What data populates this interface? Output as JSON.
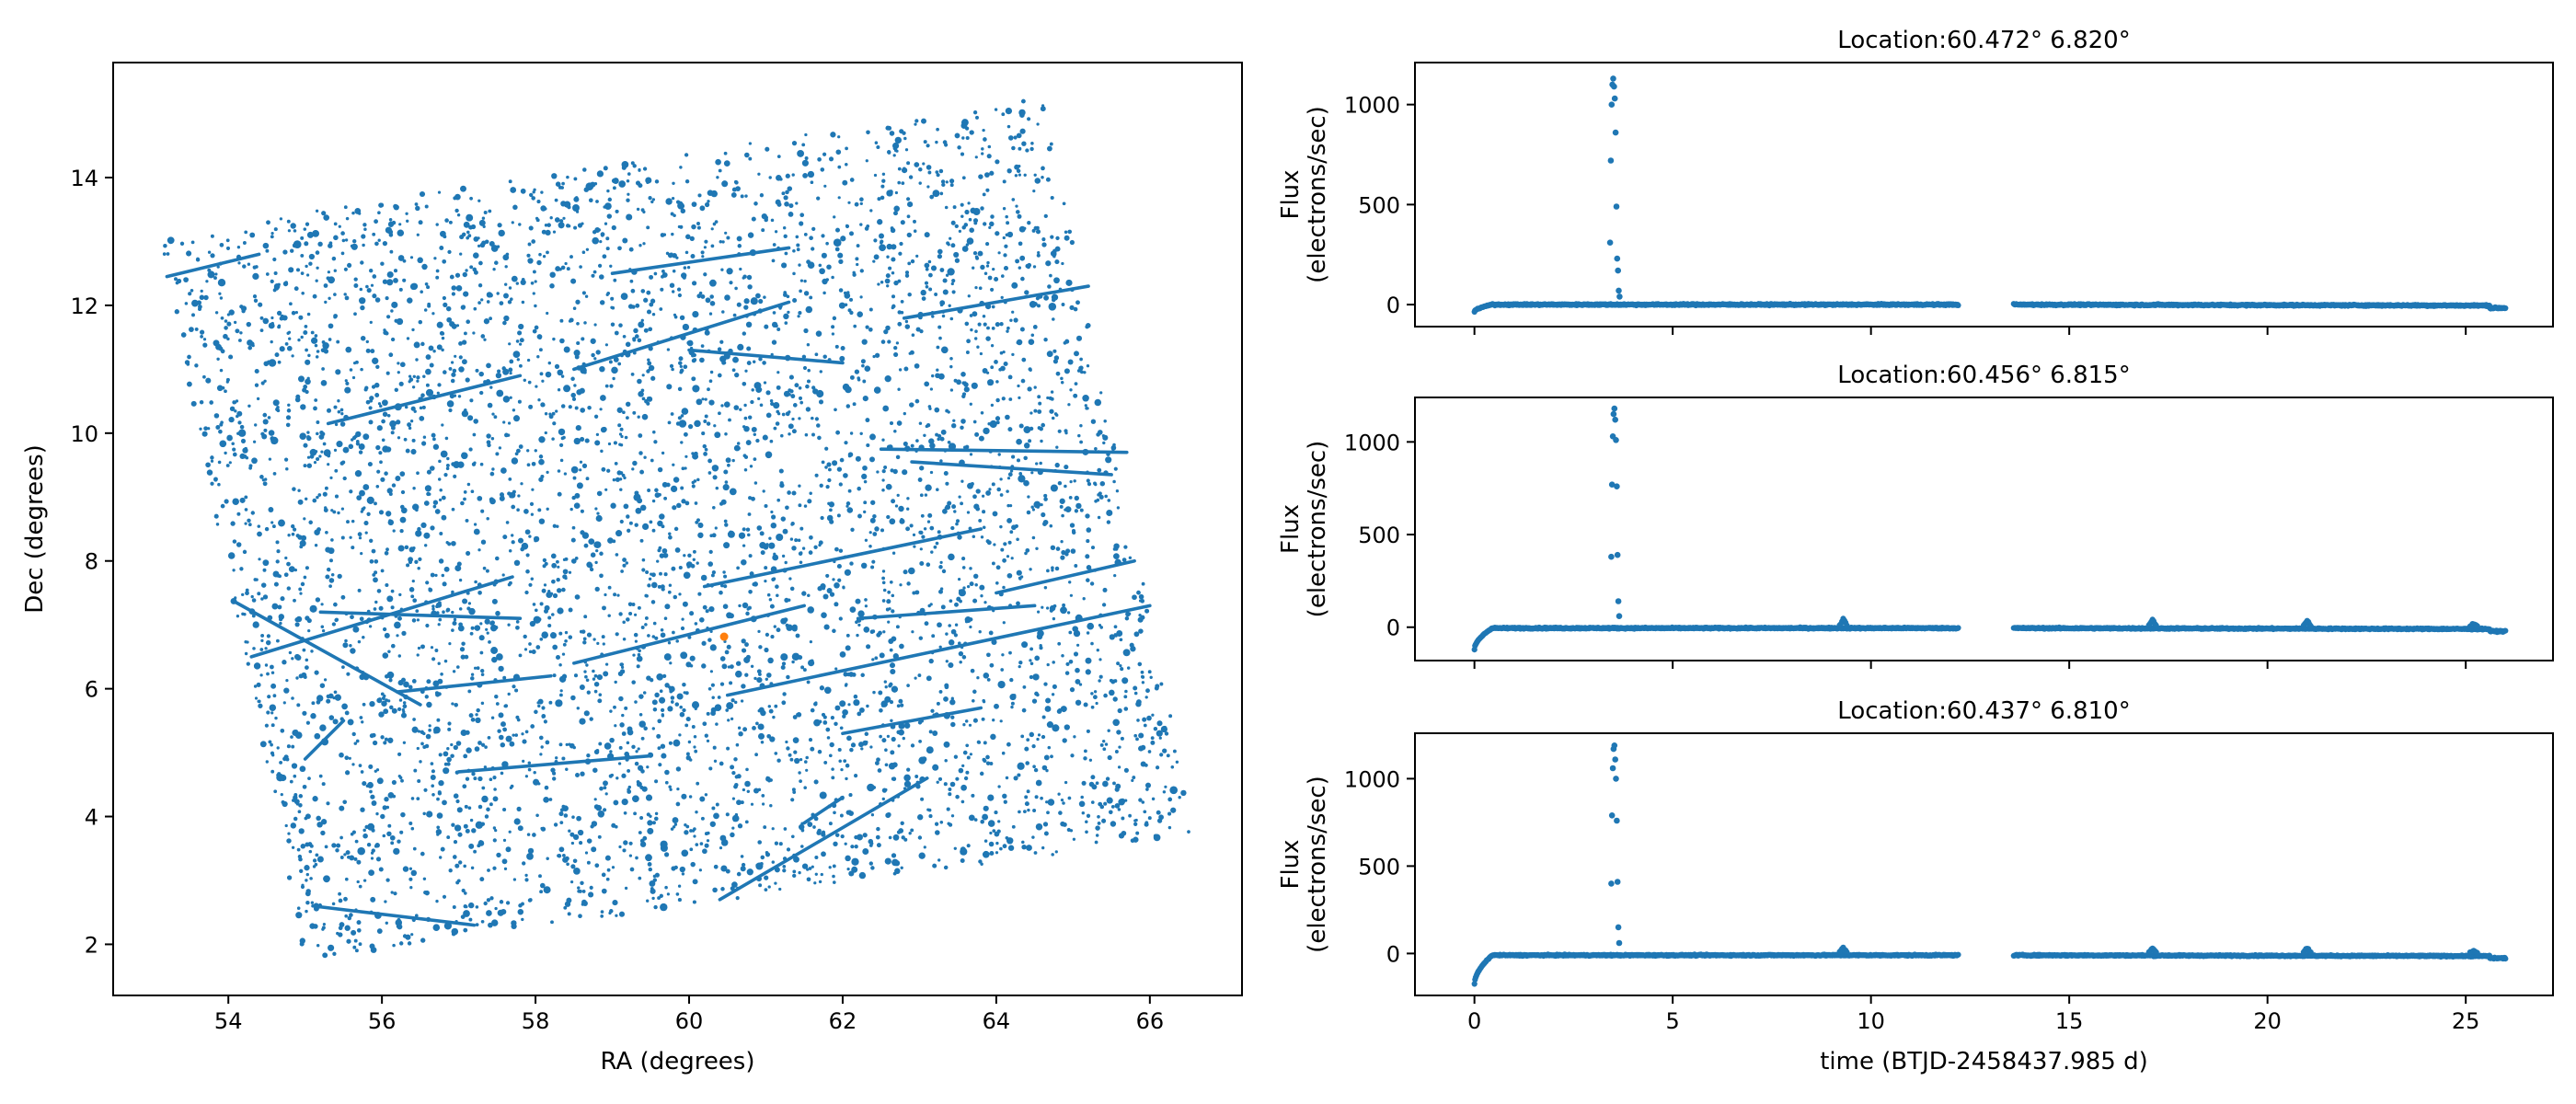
{
  "colors": {
    "series": "#1f77b4",
    "highlight": "#ff7f0e",
    "axis": "#000000"
  },
  "chart_data": [
    {
      "type": "scatter",
      "title": "",
      "xlabel": "RA (degrees)",
      "ylabel": "Dec (degrees)",
      "xlim": [
        52.5,
        67.2
      ],
      "ylim": [
        1.2,
        15.8
      ],
      "xticks": [
        54,
        56,
        58,
        60,
        62,
        64,
        66
      ],
      "yticks": [
        2,
        4,
        6,
        8,
        10,
        12,
        14
      ],
      "grid": false,
      "field_corners": {
        "ll": [
          55.0,
          1.75
        ],
        "lr": [
          66.6,
          3.72
        ],
        "ur": [
          64.6,
          15.25
        ],
        "ul": [
          53.1,
          13.1
        ]
      },
      "streaks": [
        {
          "from": [
            53.2,
            12.45
          ],
          "to": [
            54.4,
            12.8
          ]
        },
        {
          "from": [
            55.3,
            10.15
          ],
          "to": [
            57.8,
            10.9
          ]
        },
        {
          "from": [
            58.5,
            11.0
          ],
          "to": [
            61.3,
            12.05
          ]
        },
        {
          "from": [
            60.0,
            11.3
          ],
          "to": [
            62.0,
            11.1
          ]
        },
        {
          "from": [
            59.0,
            12.5
          ],
          "to": [
            61.3,
            12.9
          ]
        },
        {
          "from": [
            62.8,
            11.8
          ],
          "to": [
            65.2,
            12.3
          ]
        },
        {
          "from": [
            62.5,
            9.75
          ],
          "to": [
            65.7,
            9.7
          ]
        },
        {
          "from": [
            62.9,
            9.55
          ],
          "to": [
            65.5,
            9.35
          ]
        },
        {
          "from": [
            54.3,
            6.5
          ],
          "to": [
            57.7,
            7.75
          ]
        },
        {
          "from": [
            54.1,
            7.35
          ],
          "to": [
            56.5,
            5.75
          ]
        },
        {
          "from": [
            55.2,
            7.2
          ],
          "to": [
            57.8,
            7.1
          ]
        },
        {
          "from": [
            56.2,
            5.95
          ],
          "to": [
            58.2,
            6.2
          ]
        },
        {
          "from": [
            58.5,
            6.4
          ],
          "to": [
            61.5,
            7.3
          ]
        },
        {
          "from": [
            60.2,
            7.6
          ],
          "to": [
            63.8,
            8.5
          ]
        },
        {
          "from": [
            62.2,
            7.1
          ],
          "to": [
            64.5,
            7.3
          ]
        },
        {
          "from": [
            64.0,
            7.5
          ],
          "to": [
            65.8,
            8.0
          ]
        },
        {
          "from": [
            60.5,
            5.9
          ],
          "to": [
            66.0,
            7.3
          ]
        },
        {
          "from": [
            62.0,
            5.3
          ],
          "to": [
            63.8,
            5.7
          ]
        },
        {
          "from": [
            55.0,
            4.9
          ],
          "to": [
            55.5,
            5.5
          ]
        },
        {
          "from": [
            57.0,
            4.7
          ],
          "to": [
            59.5,
            4.95
          ]
        },
        {
          "from": [
            55.1,
            2.6
          ],
          "to": [
            57.2,
            2.3
          ]
        },
        {
          "from": [
            60.4,
            2.7
          ],
          "to": [
            63.1,
            4.6
          ]
        },
        {
          "from": [
            61.5,
            3.9
          ],
          "to": [
            62.0,
            4.3
          ]
        }
      ],
      "highlight_point": {
        "x": 60.456,
        "y": 6.815
      }
    },
    {
      "type": "scatter",
      "title": "Location:60.472° 6.820°",
      "xlabel": "",
      "ylabel": "Flux\n(electrons/sec)",
      "xlim": [
        -1.5,
        27.2
      ],
      "ylim": [
        -110,
        1210
      ],
      "xticks": [
        0,
        5,
        10,
        15,
        20,
        25
      ],
      "yticks": [
        0,
        500,
        1000
      ],
      "grid": false,
      "segments": [
        [
          0.0,
          12.2
        ],
        [
          13.6,
          26.0
        ]
      ],
      "baseline": 0,
      "ramp_start": -35,
      "flare": [
        {
          "x": 3.42,
          "y": 310
        },
        {
          "x": 3.44,
          "y": 720
        },
        {
          "x": 3.46,
          "y": 1000
        },
        {
          "x": 3.48,
          "y": 1100
        },
        {
          "x": 3.5,
          "y": 1130
        },
        {
          "x": 3.52,
          "y": 1090
        },
        {
          "x": 3.54,
          "y": 1030
        },
        {
          "x": 3.56,
          "y": 860
        },
        {
          "x": 3.58,
          "y": 490
        },
        {
          "x": 3.6,
          "y": 230
        },
        {
          "x": 3.62,
          "y": 170
        },
        {
          "x": 3.64,
          "y": 70
        },
        {
          "x": 3.66,
          "y": 40
        }
      ],
      "bumps": []
    },
    {
      "type": "scatter",
      "title": "Location:60.456° 6.815°",
      "xlabel": "",
      "ylabel": "Flux\n(electrons/sec)",
      "xlim": [
        -1.5,
        27.2
      ],
      "ylim": [
        -180,
        1240
      ],
      "xticks": [
        0,
        5,
        10,
        15,
        20,
        25
      ],
      "yticks": [
        0,
        500,
        1000
      ],
      "grid": false,
      "segments": [
        [
          0.0,
          12.2
        ],
        [
          13.6,
          26.0
        ]
      ],
      "baseline": -5,
      "ramp_start": -120,
      "flare": [
        {
          "x": 3.45,
          "y": 380
        },
        {
          "x": 3.47,
          "y": 770
        },
        {
          "x": 3.49,
          "y": 1030
        },
        {
          "x": 3.51,
          "y": 1150
        },
        {
          "x": 3.53,
          "y": 1180
        },
        {
          "x": 3.55,
          "y": 1120
        },
        {
          "x": 3.57,
          "y": 1010
        },
        {
          "x": 3.59,
          "y": 760
        },
        {
          "x": 3.61,
          "y": 390
        },
        {
          "x": 3.63,
          "y": 140
        },
        {
          "x": 3.65,
          "y": 60
        }
      ],
      "bumps": [
        {
          "x": 9.3,
          "y": 45
        },
        {
          "x": 17.1,
          "y": 40
        },
        {
          "x": 21.0,
          "y": 35
        },
        {
          "x": 25.2,
          "y": 20
        }
      ]
    },
    {
      "type": "scatter",
      "title": "Location:60.437° 6.810°",
      "xlabel": "time (BTJD-2458437.985 d)",
      "ylabel": "Flux\n(electrons/sec)",
      "xlim": [
        -1.5,
        27.2
      ],
      "ylim": [
        -240,
        1260
      ],
      "xticks": [
        0,
        5,
        10,
        15,
        20,
        25
      ],
      "yticks": [
        0,
        500,
        1000
      ],
      "grid": false,
      "segments": [
        [
          0.0,
          12.2
        ],
        [
          13.6,
          26.0
        ]
      ],
      "baseline": -10,
      "ramp_start": -175,
      "flare": [
        {
          "x": 3.45,
          "y": 400
        },
        {
          "x": 3.47,
          "y": 790
        },
        {
          "x": 3.49,
          "y": 1060
        },
        {
          "x": 3.51,
          "y": 1170
        },
        {
          "x": 3.53,
          "y": 1190
        },
        {
          "x": 3.55,
          "y": 1110
        },
        {
          "x": 3.57,
          "y": 1000
        },
        {
          "x": 3.59,
          "y": 760
        },
        {
          "x": 3.61,
          "y": 410
        },
        {
          "x": 3.63,
          "y": 150
        },
        {
          "x": 3.65,
          "y": 60
        }
      ],
      "bumps": [
        {
          "x": 9.3,
          "y": 35
        },
        {
          "x": 17.1,
          "y": 30
        },
        {
          "x": 21.0,
          "y": 30
        },
        {
          "x": 25.2,
          "y": 15
        }
      ]
    }
  ]
}
